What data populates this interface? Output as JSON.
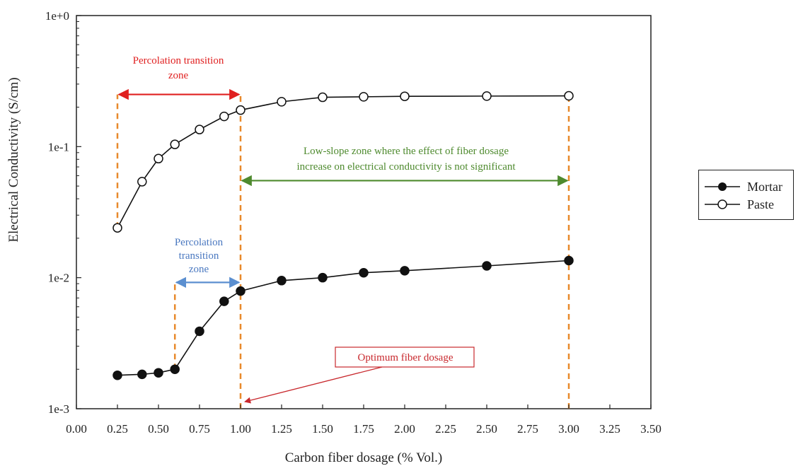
{
  "chart_data": {
    "type": "line",
    "xlabel": "Carbon fiber dosage (% Vol.)",
    "ylabel": "Electrical Conductivity (S/cm)",
    "xlim": [
      0,
      3.5
    ],
    "ylim": [
      0.001,
      1
    ],
    "yscale": "log",
    "x_ticks": [
      "0.00",
      "0.25",
      "0.50",
      "0.75",
      "1.00",
      "1.25",
      "1.50",
      "1.75",
      "2.00",
      "2.25",
      "2.50",
      "2.75",
      "3.00",
      "3.25",
      "3.50"
    ],
    "y_ticks": [
      {
        "label": "1e+0",
        "value": 1
      },
      {
        "label": "1e-1",
        "value": 0.1
      },
      {
        "label": "1e-2",
        "value": 0.01
      },
      {
        "label": "1e-3",
        "value": 0.001
      }
    ],
    "grid": false,
    "legend_position": "right",
    "series": [
      {
        "name": "Mortar",
        "marker": "filled-circle",
        "color": "#111111",
        "x": [
          0.25,
          0.4,
          0.5,
          0.6,
          0.75,
          0.9,
          1.0,
          1.25,
          1.5,
          1.75,
          2.0,
          2.5,
          3.0
        ],
        "y": [
          0.0018,
          0.00183,
          0.00188,
          0.002,
          0.0039,
          0.0066,
          0.0079,
          0.0095,
          0.01,
          0.0109,
          0.0113,
          0.0123,
          0.0135
        ]
      },
      {
        "name": "Paste",
        "marker": "open-circle",
        "color": "#111111",
        "x": [
          0.25,
          0.4,
          0.5,
          0.6,
          0.75,
          0.9,
          1.0,
          1.25,
          1.5,
          1.75,
          2.0,
          2.5,
          3.0
        ],
        "y": [
          0.024,
          0.054,
          0.081,
          0.104,
          0.135,
          0.17,
          0.19,
          0.22,
          0.238,
          0.24,
          0.242,
          0.243,
          0.244
        ]
      }
    ],
    "reference_lines": [
      {
        "x": 0.25,
        "y_from": 0.024,
        "y_to": 0.25,
        "color": "#e8892b"
      },
      {
        "x": 1.0,
        "y_from": 0.001,
        "y_to": 0.25,
        "color": "#e8892b"
      },
      {
        "x": 3.0,
        "y_from": 0.001,
        "y_to": 0.244,
        "color": "#e8892b"
      },
      {
        "x": 0.6,
        "y_from": 0.002,
        "y_to": 0.0092,
        "color": "#e8892b"
      }
    ],
    "annotations": [
      {
        "text_lines": [
          "Percolation transition",
          "zone"
        ],
        "color": "#e02020",
        "arrow": {
          "x1": 0.25,
          "x2": 1.0,
          "y": 0.25,
          "color": "#e02020"
        }
      },
      {
        "text_lines": [
          "Low-slope zone where the effect of fiber dosage",
          "increase on electrical conductivity is not significant"
        ],
        "color": "#4e8a2e",
        "arrow": {
          "x1": 1.0,
          "x2": 3.0,
          "y": 0.055,
          "color": "#4e8a2e"
        }
      },
      {
        "text_lines": [
          "Percolation",
          "transition",
          "zone"
        ],
        "color": "#4a78c0",
        "arrow": {
          "x1": 0.6,
          "x2": 1.0,
          "y": 0.0092,
          "color": "#5b8fd0"
        }
      },
      {
        "text_lines": [
          "Optimum fiber dosage"
        ],
        "color": "#c8282d",
        "boxed": true,
        "arrow_target": {
          "x": 1.0,
          "y": 0.00113
        },
        "color_arrow": "#c8282d"
      }
    ]
  }
}
